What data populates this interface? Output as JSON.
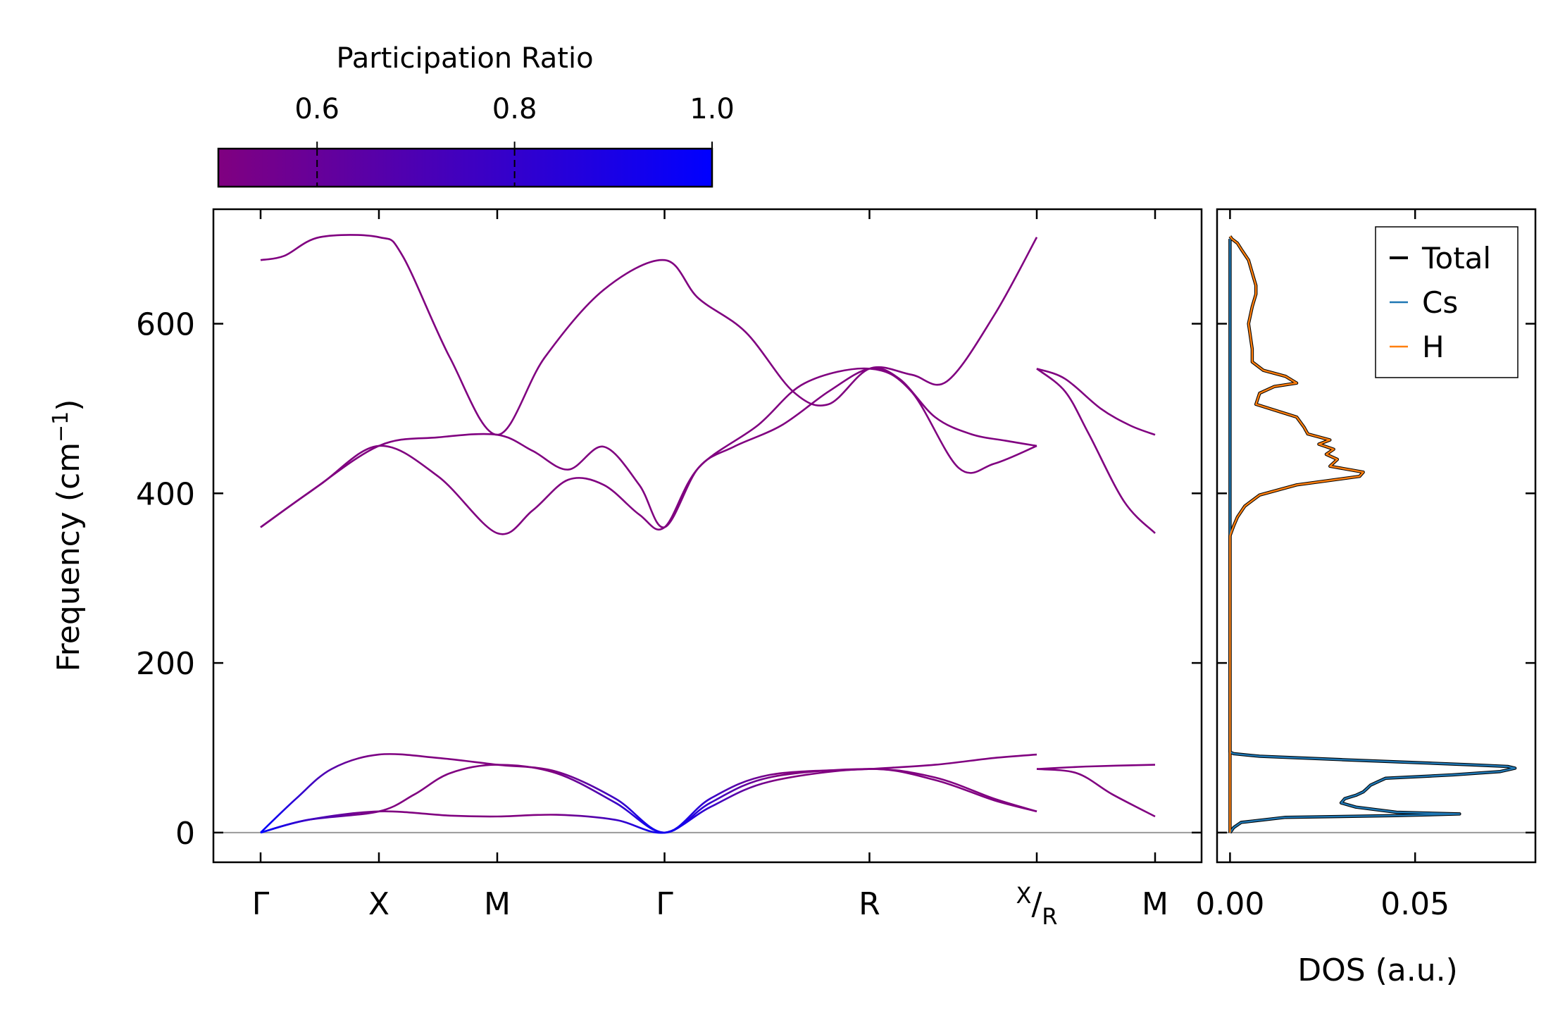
{
  "chart_data": [
    {
      "type": "line",
      "title": "",
      "xlabel": "",
      "ylabel": "Frequency (cm",
      "ylabel_sup": "−1",
      "ylabel_end": ")",
      "ylim": [
        -35,
        735
      ],
      "yticks": [
        0,
        200,
        400,
        600
      ],
      "k_path": [
        {
          "label": "Γ",
          "x": 0
        },
        {
          "label": "X",
          "x": 1
        },
        {
          "label": "M",
          "x": 2
        },
        {
          "label": "Γ",
          "x": 3.414
        },
        {
          "label": "R",
          "x": 5.146
        },
        {
          "label_main": "X",
          "label_sub": "R",
          "x": 6.56
        },
        {
          "label": "M",
          "x": 7.56
        }
      ],
      "path_break_at": 6.56,
      "zero_line": 0,
      "colorbar": {
        "title": "Participation Ratio",
        "range": [
          0.5,
          1.0
        ],
        "ticks": [
          "0.6",
          "0.8",
          "1.0"
        ],
        "tick_values": [
          0.6,
          0.8,
          1.0
        ],
        "color_low": "#800080",
        "color_high": "#0000ff"
      },
      "bands_optical": [
        {
          "name": "optic-upper",
          "x": [
            0,
            0.2,
            0.5,
            1.0,
            1.2,
            1.6,
            2.0,
            2.4,
            2.9,
            3.414,
            3.7,
            4.1,
            4.5,
            4.8,
            5.146,
            5.5,
            5.8,
            6.2,
            6.56
          ],
          "y": [
            675,
            680,
            702,
            702,
            680,
            560,
            469,
            560,
            640,
            675,
            630,
            590,
            520,
            505,
            547,
            540,
            532,
            610,
            702
          ]
        },
        {
          "name": "optic-middle",
          "x": [
            0,
            0.4,
            1.0,
            1.5,
            2.0,
            2.3,
            2.6,
            2.9,
            3.2,
            3.414,
            3.7,
            4.0,
            4.4,
            4.8,
            5.146,
            5.4,
            5.7,
            6.0,
            6.3,
            6.56
          ],
          "y": [
            360,
            400,
            456,
            466,
            469,
            450,
            428,
            455,
            410,
            360,
            430,
            455,
            480,
            520,
            547,
            535,
            490,
            470,
            462,
            456
          ]
        },
        {
          "name": "optic-lower",
          "x": [
            0,
            0.5,
            1.0,
            1.5,
            2.0,
            2.3,
            2.6,
            2.9,
            3.2,
            3.414,
            3.7,
            4.2,
            4.6,
            5.146,
            5.5,
            5.9,
            6.2,
            6.56
          ],
          "y": [
            360,
            410,
            456,
            420,
            353,
            380,
            416,
            410,
            375,
            360,
            430,
            480,
            530,
            547,
            520,
            430,
            435,
            456
          ]
        },
        {
          "name": "optic-seg2-upper",
          "x": [
            6.56,
            6.8,
            7.1,
            7.35,
            7.56
          ],
          "y": [
            547,
            535,
            500,
            480,
            469
          ]
        },
        {
          "name": "optic-seg2-lower",
          "x": [
            6.56,
            6.8,
            7.0,
            7.3,
            7.56
          ],
          "y": [
            547,
            520,
            470,
            390,
            353
          ]
        }
      ],
      "bands_acoustic": [
        {
          "name": "acoustic-upper",
          "x": [
            0,
            0.3,
            0.6,
            1.0,
            1.5,
            2.0,
            2.5,
            3.0,
            3.414,
            3.8,
            4.3,
            5.146,
            5.7,
            6.2,
            6.56
          ],
          "y": [
            0,
            40,
            75,
            92,
            88,
            80,
            72,
            40,
            0,
            40,
            68,
            75,
            80,
            88,
            92
          ]
        },
        {
          "name": "acoustic-mid",
          "x": [
            0,
            0.4,
            1.0,
            1.3,
            1.6,
            2.0,
            2.5,
            3.0,
            3.414,
            3.8,
            4.3,
            5.146,
            5.7,
            6.2,
            6.56
          ],
          "y": [
            0,
            15,
            25,
            45,
            70,
            80,
            70,
            35,
            0,
            35,
            65,
            75,
            65,
            40,
            25
          ]
        },
        {
          "name": "acoustic-lower",
          "x": [
            0,
            0.4,
            1.0,
            1.6,
            2.0,
            2.5,
            3.0,
            3.414,
            3.8,
            4.3,
            5.146,
            5.7,
            6.2,
            6.56
          ],
          "y": [
            0,
            15,
            25,
            20,
            19,
            21,
            15,
            0,
            30,
            60,
            75,
            62,
            38,
            25
          ]
        },
        {
          "name": "acoustic-seg2-upper",
          "x": [
            6.56,
            7.0,
            7.56
          ],
          "y": [
            75,
            78,
            80
          ]
        },
        {
          "name": "acoustic-seg2-lower",
          "x": [
            6.56,
            6.9,
            7.2,
            7.56
          ],
          "y": [
            75,
            70,
            45,
            19
          ]
        }
      ]
    },
    {
      "type": "line",
      "xlabel": "DOS (a.u.)",
      "ylabel": "",
      "xlim": [
        -0.0035,
        0.0825
      ],
      "xticks": [
        0.0,
        0.05
      ],
      "xtick_labels": [
        "0.00",
        "0.05"
      ],
      "legend": {
        "position": "top-right",
        "entries": [
          {
            "label": "Total",
            "color": "#000000"
          },
          {
            "label": "Cs",
            "color": "#1f77b4"
          },
          {
            "label": "H",
            "color": "#ff7f0e"
          }
        ]
      },
      "series": [
        {
          "name": "Cs",
          "color": "#1f77b4",
          "freq": [
            0,
            3,
            6,
            12,
            18,
            20,
            22,
            24,
            30,
            35,
            40,
            44,
            48,
            52,
            56,
            60,
            64,
            68,
            72,
            76,
            78,
            80,
            86,
            90,
            93,
            95,
            700
          ],
          "dos": [
            0,
            0.0005,
            0.001,
            0.003,
            0.015,
            0.045,
            0.062,
            0.045,
            0.034,
            0.03,
            0.031,
            0.034,
            0.036,
            0.037,
            0.038,
            0.04,
            0.042,
            0.06,
            0.073,
            0.077,
            0.075,
            0.065,
            0.03,
            0.008,
            0.001,
            0,
            0
          ]
        },
        {
          "name": "H",
          "color": "#ff7f0e",
          "freq": [
            0,
            350,
            356,
            362,
            372,
            385,
            398,
            410,
            420,
            425,
            432,
            440,
            446,
            452,
            458,
            463,
            470,
            478,
            490,
            505,
            518,
            526,
            530,
            538,
            545,
            555,
            570,
            600,
            620,
            635,
            645,
            660,
            675,
            688,
            695,
            700,
            703
          ],
          "dos": [
            0,
            0,
            0.0005,
            0.001,
            0.002,
            0.004,
            0.008,
            0.018,
            0.035,
            0.036,
            0.027,
            0.029,
            0.026,
            0.028,
            0.024,
            0.027,
            0.021,
            0.02,
            0.018,
            0.007,
            0.008,
            0.012,
            0.018,
            0.015,
            0.009,
            0.006,
            0.006,
            0.005,
            0.006,
            0.007,
            0.007,
            0.006,
            0.005,
            0.003,
            0.002,
            0.0005,
            0
          ]
        }
      ]
    }
  ]
}
